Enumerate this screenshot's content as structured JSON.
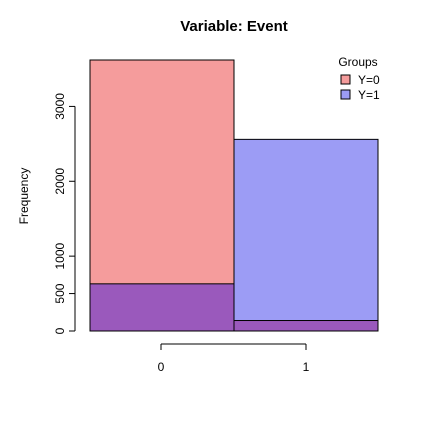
{
  "chart_data": {
    "type": "bar",
    "title": "Variable: Event",
    "xlabel": "",
    "ylabel": "Frequency",
    "categories": [
      "0",
      "1"
    ],
    "series": [
      {
        "name": "Y=0",
        "values": [
          3620,
          140
        ],
        "color": "#f59c9c"
      },
      {
        "name": "Y=1",
        "values": [
          630,
          2560
        ],
        "color": "#9c9cf5"
      }
    ],
    "overlap_color": "#9a59bc",
    "yticks": [
      0,
      500,
      1000,
      2000,
      3000
    ],
    "ylim": [
      0,
      3620
    ],
    "x_ticks": [
      "0",
      "1"
    ],
    "legend": {
      "title": "Groups",
      "position": "top-right"
    },
    "grid": false
  }
}
